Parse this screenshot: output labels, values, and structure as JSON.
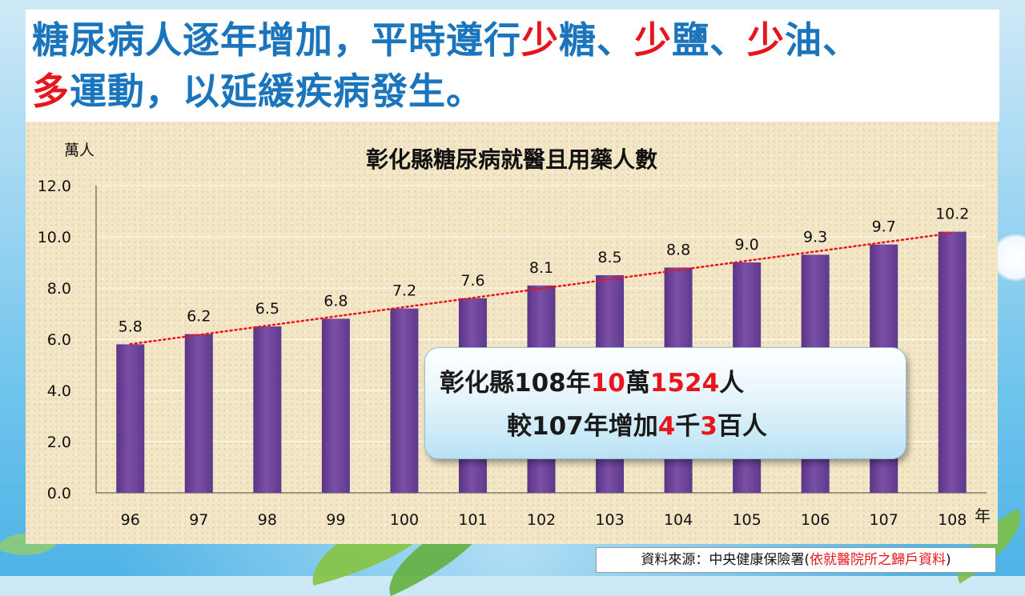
{
  "headline": {
    "part1": "糖尿病人逐年增加，平時遵行",
    "hl1": "少",
    "part2": "糖、",
    "hl2": "少",
    "part3": "鹽、",
    "hl3": "少",
    "part4": "油、",
    "hl4": "多",
    "part5": "運動，以延緩疾病發生。"
  },
  "chart_data": {
    "type": "bar",
    "title": "彰化縣糖尿病就醫且用藥人數",
    "ylabel": "萬人",
    "xlabel": "年",
    "categories": [
      "96",
      "97",
      "98",
      "99",
      "100",
      "101",
      "102",
      "103",
      "104",
      "105",
      "106",
      "107",
      "108"
    ],
    "values": [
      5.8,
      6.2,
      6.5,
      6.8,
      7.2,
      7.6,
      8.1,
      8.5,
      8.8,
      9.0,
      9.3,
      9.7,
      10.2
    ],
    "data_labels": [
      "5.8",
      "6.2",
      "6.5",
      "6.8",
      "7.2",
      "7.6",
      "8.1",
      "8.5",
      "8.8",
      "9.0",
      "9.3",
      "9.7",
      "10.2"
    ],
    "ylim": [
      0,
      12
    ],
    "yticks": [
      0,
      2,
      4,
      6,
      8,
      10,
      12
    ],
    "ytick_labels": [
      "0.0",
      "2.0",
      "4.0",
      "6.0",
      "8.0",
      "10.0",
      "12.0"
    ],
    "grid": true,
    "trendline": "linear-dotted",
    "colors": {
      "bar": "#7b4fa6",
      "trend": "#e8161c"
    }
  },
  "callout": {
    "line1_a": "彰化縣108年",
    "line1_b": "10",
    "line1_c": "萬",
    "line1_d": "1524",
    "line1_e": "人",
    "line2_a": "較107年增加",
    "line2_b": "4",
    "line2_c": "千",
    "line2_d": "3",
    "line2_e": "百",
    "line2_f": "人"
  },
  "source": {
    "prefix": "資料來源：中央健康保險署(",
    "highlight": "依就醫院所之歸戶資料",
    "suffix": ")"
  },
  "colors": {
    "headline_blue": "#1a75bc",
    "highlight_red": "#e8161c"
  }
}
